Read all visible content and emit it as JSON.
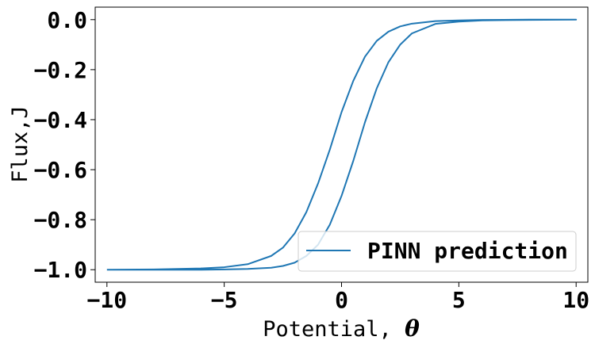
{
  "chart_data": {
    "type": "line",
    "xlabel": "Potential, ",
    "xlabel_symbol": "θ",
    "ylabel": "Flux,J",
    "xlim": [
      -10.5,
      10.5
    ],
    "ylim": [
      -1.05,
      0.05
    ],
    "xticks": [
      -10,
      -5,
      0,
      5,
      10
    ],
    "xtick_labels": [
      "−10",
      "−5",
      "0",
      "5",
      "10"
    ],
    "yticks": [
      0.0,
      -0.2,
      -0.4,
      -0.6,
      -0.8,
      -1.0
    ],
    "ytick_labels": [
      "0.0",
      "−0.2",
      "−0.4",
      "−0.6",
      "−0.8",
      "−1.0"
    ],
    "legend_location": "lower right",
    "color": "#1f77b4",
    "series": [
      {
        "name": "PINN prediction",
        "x": [
          -10,
          -8,
          -6,
          -5,
          -4,
          -3,
          -2.5,
          -2,
          -1.5,
          -1,
          -0.5,
          0,
          0.5,
          1,
          1.5,
          2,
          2.5,
          3,
          4,
          5,
          6,
          8,
          10,
          8,
          6,
          5,
          4,
          3,
          2.5,
          2,
          1.5,
          1,
          0.5,
          0,
          -0.5,
          -1,
          -1.5,
          -2,
          -2.5,
          -3,
          -4,
          -5,
          -6,
          -8,
          -10
        ],
        "y": [
          -1.0,
          -0.999,
          -0.995,
          -0.99,
          -0.978,
          -0.945,
          -0.912,
          -0.855,
          -0.77,
          -0.655,
          -0.52,
          -0.37,
          -0.245,
          -0.148,
          -0.085,
          -0.048,
          -0.027,
          -0.016,
          -0.006,
          -0.003,
          -0.001,
          0.0,
          0.0,
          -0.001,
          -0.003,
          -0.008,
          -0.017,
          -0.055,
          -0.1,
          -0.17,
          -0.275,
          -0.41,
          -0.565,
          -0.705,
          -0.82,
          -0.9,
          -0.945,
          -0.972,
          -0.985,
          -0.992,
          -0.997,
          -0.999,
          -1.0,
          -1.0,
          -1.0
        ]
      }
    ]
  }
}
